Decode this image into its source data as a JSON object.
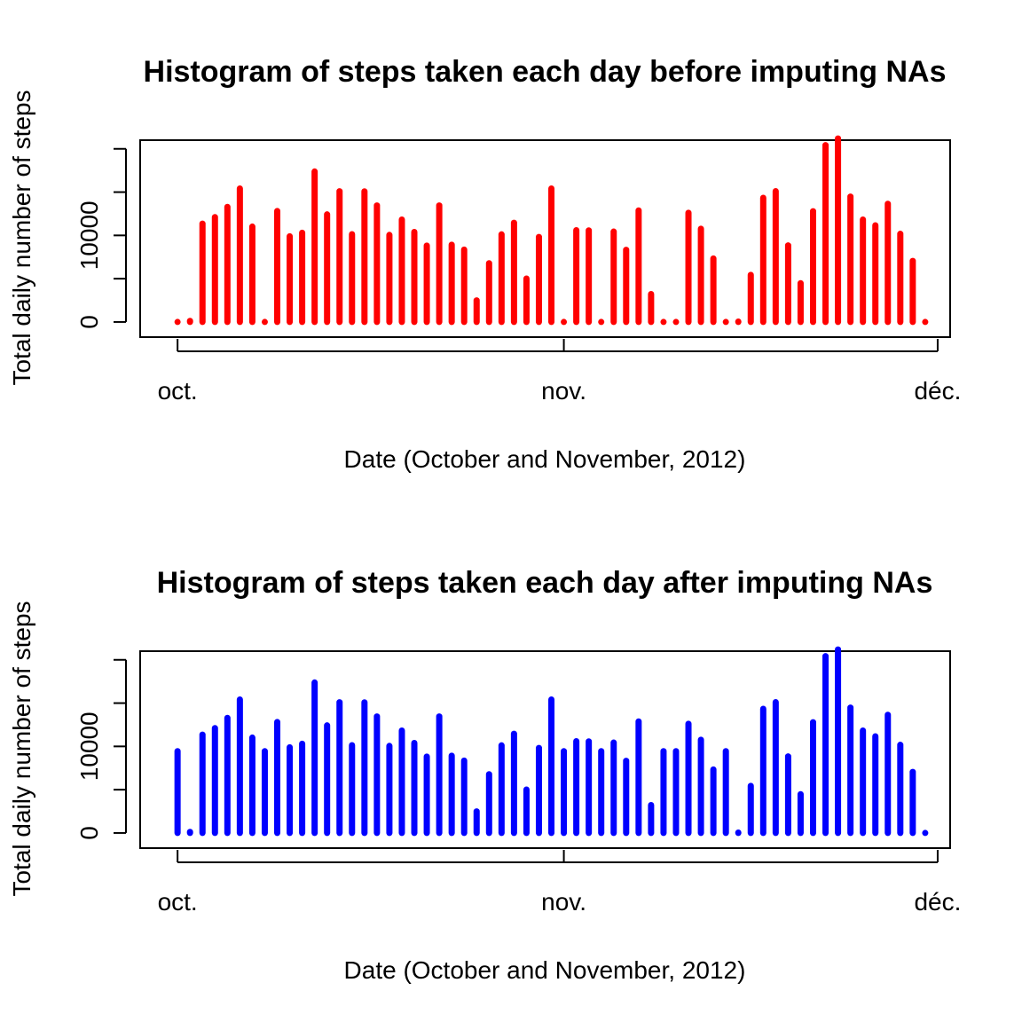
{
  "chart_data": [
    {
      "type": "bar",
      "title": "Histogram of steps taken each day before imputing NAs",
      "xlabel": "Date (October and November, 2012)",
      "ylabel": "Total daily number of steps",
      "x_ticks": [
        {
          "date": "2012-10-01",
          "label": "oct."
        },
        {
          "date": "2012-11-01",
          "label": "nov."
        },
        {
          "date": "2012-12-01",
          "label": "déc."
        }
      ],
      "xlim": [
        "2012-09-28",
        "2012-12-02"
      ],
      "y_ticks": [
        0,
        10000
      ],
      "ylim": [
        -1750,
        21000
      ],
      "color": "#ff0000",
      "series": [
        {
          "x": [
            "2012-10-01",
            "2012-10-02",
            "2012-10-03",
            "2012-10-04",
            "2012-10-05",
            "2012-10-06",
            "2012-10-07",
            "2012-10-08",
            "2012-10-09",
            "2012-10-10",
            "2012-10-11",
            "2012-10-12",
            "2012-10-13",
            "2012-10-14",
            "2012-10-15",
            "2012-10-16",
            "2012-10-17",
            "2012-10-18",
            "2012-10-19",
            "2012-10-20",
            "2012-10-21",
            "2012-10-22",
            "2012-10-23",
            "2012-10-24",
            "2012-10-25",
            "2012-10-26",
            "2012-10-27",
            "2012-10-28",
            "2012-10-29",
            "2012-10-30",
            "2012-10-31",
            "2012-11-01",
            "2012-11-02",
            "2012-11-03",
            "2012-11-04",
            "2012-11-05",
            "2012-11-06",
            "2012-11-07",
            "2012-11-08",
            "2012-11-09",
            "2012-11-10",
            "2012-11-11",
            "2012-11-12",
            "2012-11-13",
            "2012-11-14",
            "2012-11-15",
            "2012-11-16",
            "2012-11-17",
            "2012-11-18",
            "2012-11-19",
            "2012-11-20",
            "2012-11-21",
            "2012-11-22",
            "2012-11-23",
            "2012-11-24",
            "2012-11-25",
            "2012-11-26",
            "2012-11-27",
            "2012-11-28",
            "2012-11-29",
            "2012-11-30"
          ],
          "values": [
            0,
            126,
            11352,
            12116,
            13294,
            15420,
            11015,
            0,
            12811,
            9900,
            10304,
            17382,
            12426,
            15098,
            10139,
            15084,
            13452,
            10056,
            11829,
            10395,
            8821,
            13460,
            8918,
            8355,
            2492,
            6778,
            10119,
            11458,
            5018,
            9819,
            15414,
            0,
            10600,
            10571,
            0,
            10439,
            8334,
            12883,
            3219,
            0,
            0,
            12608,
            10765,
            7336,
            0,
            41,
            5441,
            14339,
            15110,
            8841,
            4472,
            12787,
            20427,
            21194,
            14478,
            11834,
            11162,
            13646,
            10183,
            7047,
            0
          ]
        }
      ]
    },
    {
      "type": "bar",
      "title": "Histogram of steps taken each day after imputing NAs",
      "xlabel": "Date (October and November, 2012)",
      "ylabel": "Total daily number of steps",
      "x_ticks": [
        {
          "date": "2012-10-01",
          "label": "oct."
        },
        {
          "date": "2012-11-01",
          "label": "nov."
        },
        {
          "date": "2012-12-01",
          "label": "déc."
        }
      ],
      "xlim": [
        "2012-09-28",
        "2012-12-02"
      ],
      "y_ticks": [
        0,
        10000
      ],
      "ylim": [
        -1750,
        21000
      ],
      "color": "#0000ff",
      "series": [
        {
          "x": [
            "2012-10-01",
            "2012-10-02",
            "2012-10-03",
            "2012-10-04",
            "2012-10-05",
            "2012-10-06",
            "2012-10-07",
            "2012-10-08",
            "2012-10-09",
            "2012-10-10",
            "2012-10-11",
            "2012-10-12",
            "2012-10-13",
            "2012-10-14",
            "2012-10-15",
            "2012-10-16",
            "2012-10-17",
            "2012-10-18",
            "2012-10-19",
            "2012-10-20",
            "2012-10-21",
            "2012-10-22",
            "2012-10-23",
            "2012-10-24",
            "2012-10-25",
            "2012-10-26",
            "2012-10-27",
            "2012-10-28",
            "2012-10-29",
            "2012-10-30",
            "2012-10-31",
            "2012-11-01",
            "2012-11-02",
            "2012-11-03",
            "2012-11-04",
            "2012-11-05",
            "2012-11-06",
            "2012-11-07",
            "2012-11-08",
            "2012-11-09",
            "2012-11-10",
            "2012-11-11",
            "2012-11-12",
            "2012-11-13",
            "2012-11-14",
            "2012-11-15",
            "2012-11-16",
            "2012-11-17",
            "2012-11-18",
            "2012-11-19",
            "2012-11-20",
            "2012-11-21",
            "2012-11-22",
            "2012-11-23",
            "2012-11-24",
            "2012-11-25",
            "2012-11-26",
            "2012-11-27",
            "2012-11-28",
            "2012-11-29",
            "2012-11-30"
          ],
          "values": [
            9450,
            126,
            11352,
            12116,
            13294,
            15420,
            11015,
            9450,
            12811,
            9900,
            10304,
            17382,
            12426,
            15098,
            10139,
            15084,
            13452,
            10056,
            11829,
            10395,
            8821,
            13460,
            8918,
            8355,
            2492,
            6778,
            10119,
            11458,
            5018,
            9819,
            15414,
            9450,
            10600,
            10571,
            9450,
            10439,
            8334,
            12883,
            3219,
            9450,
            9450,
            12608,
            10765,
            7336,
            9450,
            41,
            5441,
            14339,
            15110,
            8841,
            4472,
            12787,
            20427,
            21194,
            14478,
            11834,
            11162,
            13646,
            10183,
            7047,
            0
          ]
        }
      ]
    }
  ]
}
